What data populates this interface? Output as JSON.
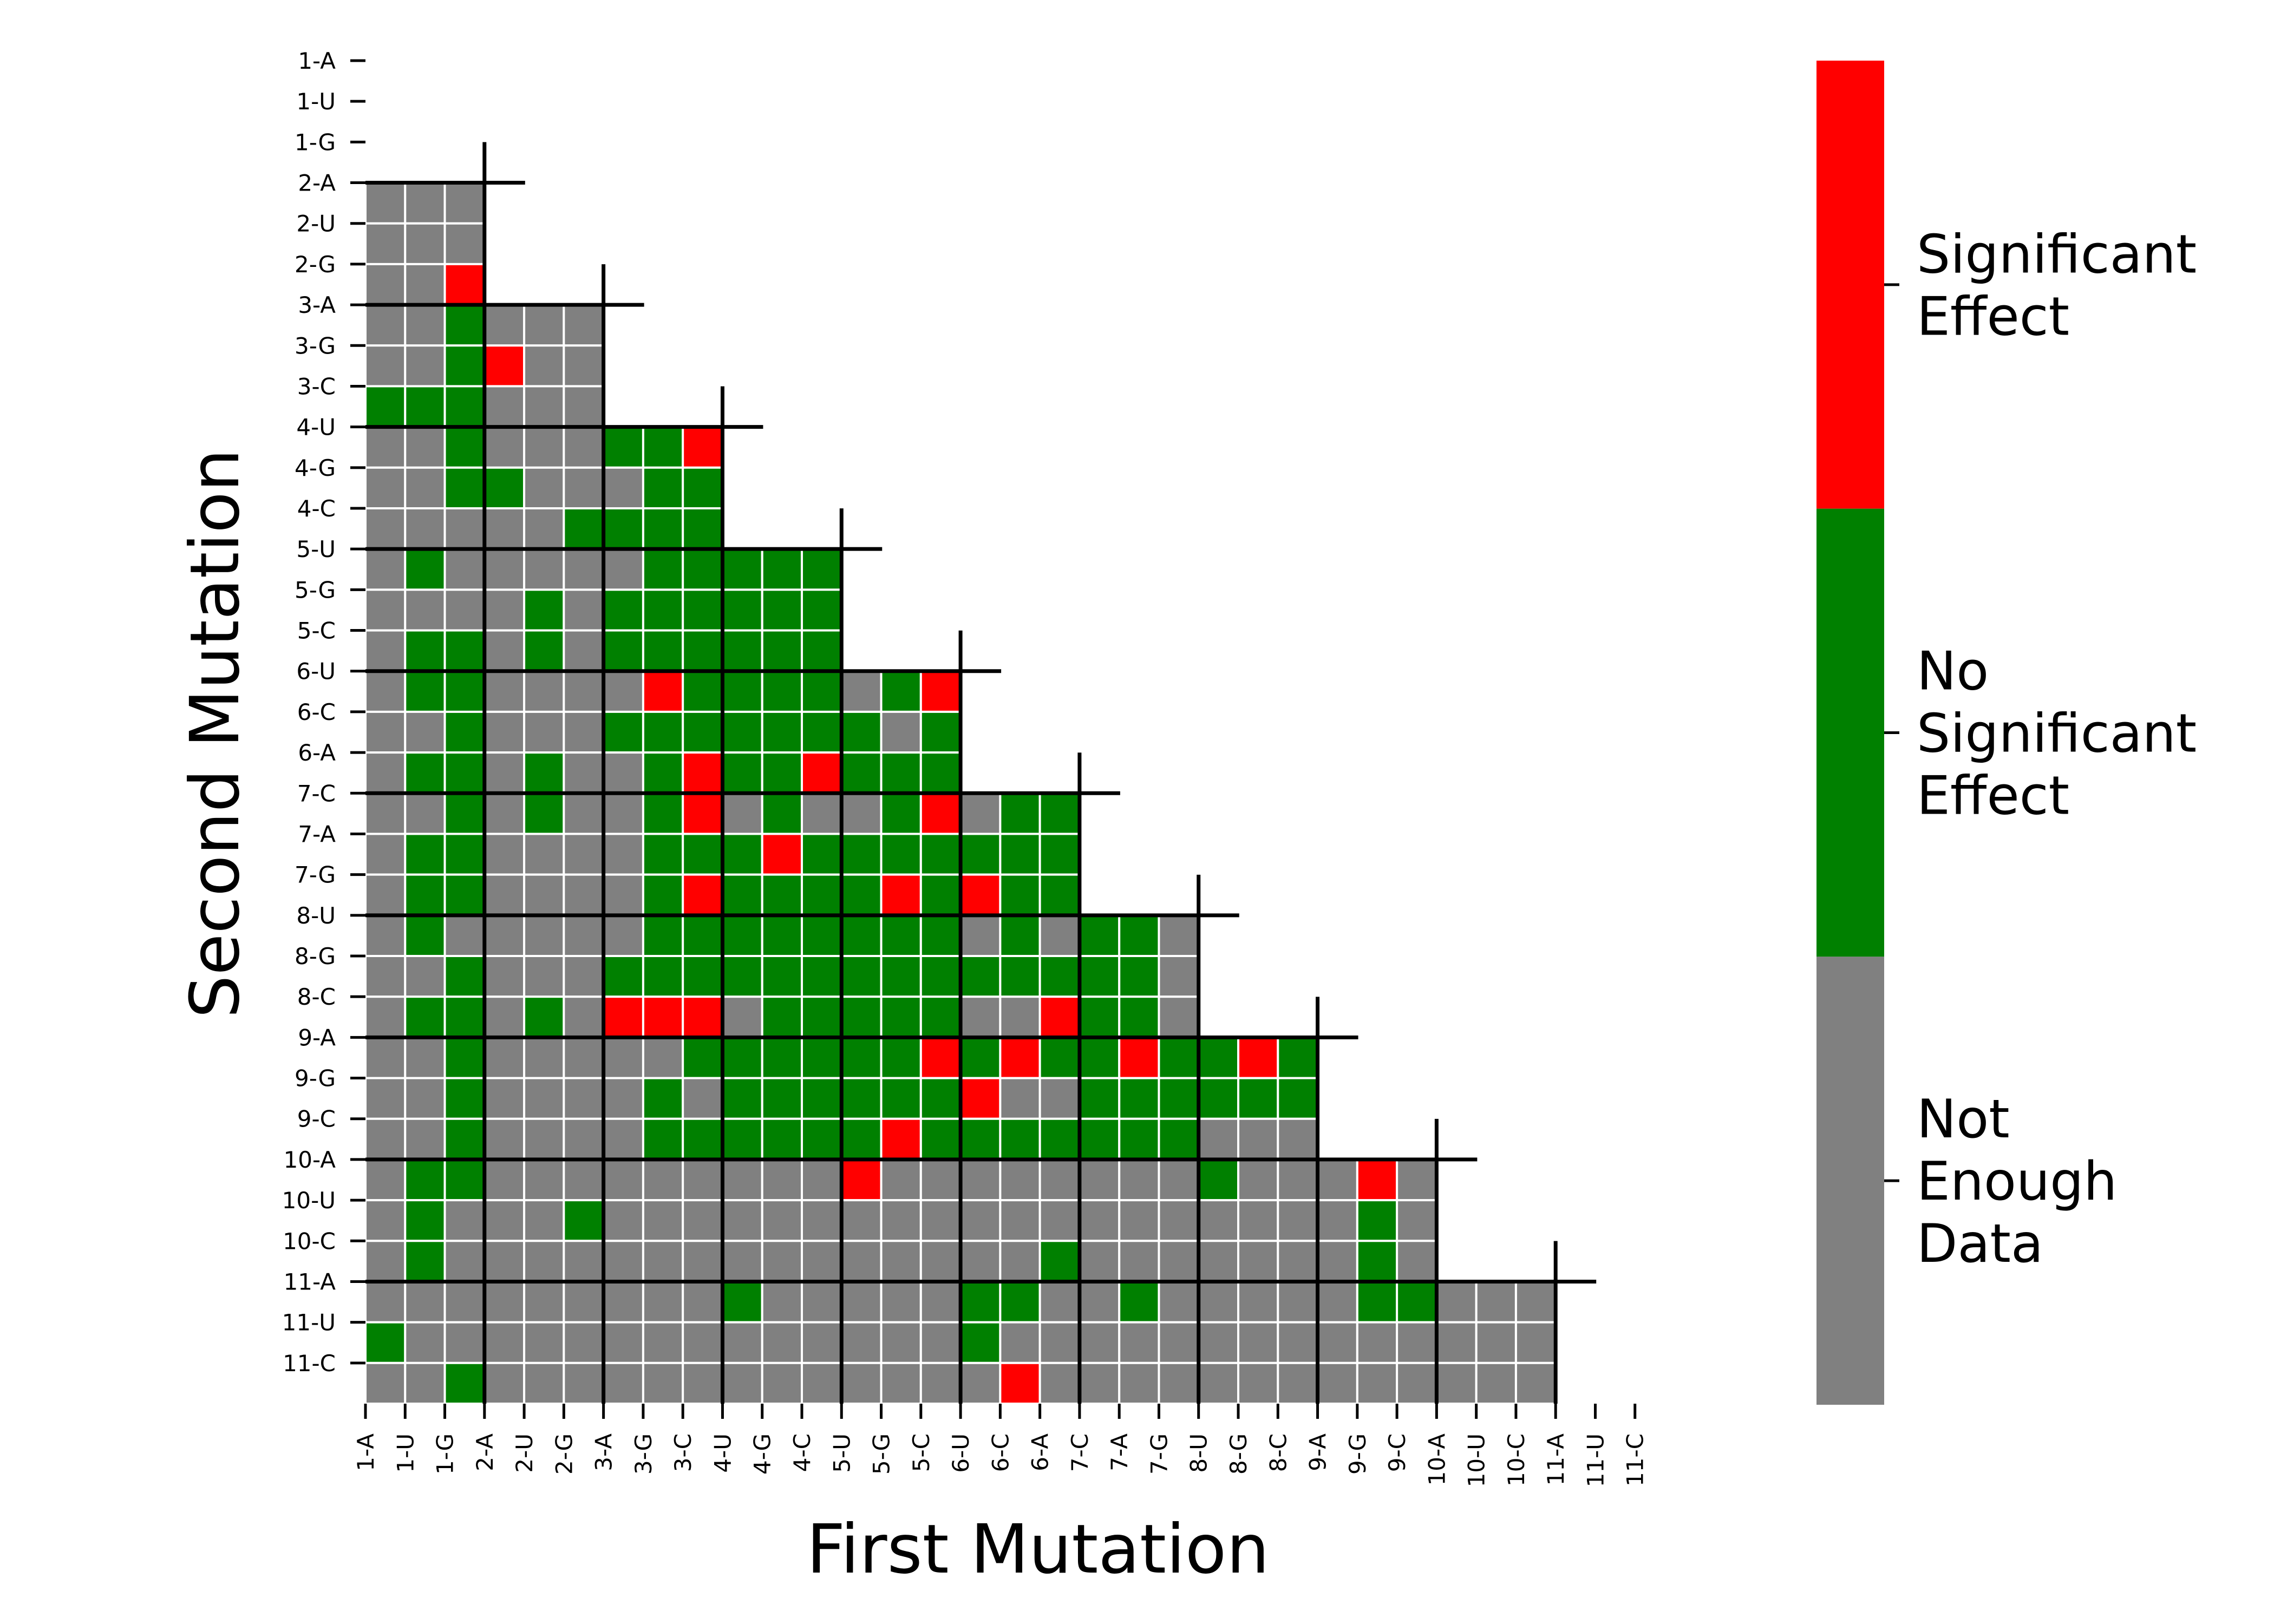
{
  "chart_data": {
    "type": "heatmap",
    "xlabel": "First Mutation",
    "ylabel": "Second Mutation",
    "x_tick_labels": [
      "1-A",
      "1-U",
      "1-G",
      "2-A",
      "2-U",
      "2-G",
      "3-A",
      "3-G",
      "3-C",
      "4-U",
      "4-G",
      "4-C",
      "5-U",
      "5-G",
      "5-C",
      "6-U",
      "6-C",
      "6-A",
      "7-C",
      "7-A",
      "7-G",
      "8-U",
      "8-G",
      "8-C",
      "9-A",
      "9-G",
      "9-C",
      "10-A",
      "10-U",
      "10-C",
      "11-A",
      "11-U",
      "11-C"
    ],
    "y_tick_labels": [
      "1-A",
      "1-U",
      "1-G",
      "2-A",
      "2-U",
      "2-G",
      "3-A",
      "3-G",
      "3-C",
      "4-U",
      "4-G",
      "4-C",
      "5-U",
      "5-G",
      "5-C",
      "6-U",
      "6-C",
      "6-A",
      "7-C",
      "7-A",
      "7-G",
      "8-U",
      "8-G",
      "8-C",
      "9-A",
      "9-G",
      "9-C",
      "10-A",
      "10-U",
      "10-C",
      "11-A",
      "11-U",
      "11-C"
    ],
    "category_codes": {
      "N": "Not Enough Data",
      "G": "No Significant Effect",
      "R": "Significant Effect"
    },
    "legend": [
      {
        "label_lines": [
          "Significant",
          "Effect"
        ],
        "color": "#ff0000"
      },
      {
        "label_lines": [
          "No",
          "Significant",
          "Effect"
        ],
        "color": "#008000"
      },
      {
        "label_lines": [
          "Not",
          "Enough",
          "Data"
        ],
        "color": "#808080"
      }
    ],
    "colors": {
      "N": "#808080",
      "G": "#008000",
      "R": "#ff0000",
      "grid": "#ffffff",
      "separator": "#000000"
    },
    "group_sizes": [
      3,
      3,
      3,
      3,
      3,
      3,
      3,
      3,
      3,
      3,
      3
    ],
    "rows": [
      "NNN",
      "NNN",
      "NNR",
      "NNGNNN",
      "NNGRNN",
      "GGGNNN",
      "NNGNNNGGR",
      "NNGGNNNGG",
      "NNNNNGGGG",
      "NGNNNNNGGGGG",
      "NNNNGNGGGGGG",
      "NGGNGNGGGGGG",
      "NGGNNNNRGGGGNGR",
      "NNGNNNGGGGGGGNG",
      "NGGNGNNGRGGRGGG",
      "NNGNGNNGRNGNNGRNGG",
      "NGGNNNNGGGRGGGGGGG",
      "NGGNNNNGRGGGGRGRGG",
      "NGNNNNNGGGGGGGGNGNGGN",
      "NNGNNNGGGGGGGGGGGGGGN",
      "NGGNGNRRRNGGGGGNNRGGN",
      "NNGNNNNNGGGGGGRGRGGRGGRG",
      "NNGNNNNGNGGGGGGRNNGGGGGG",
      "NNGNNNNGGGGGGRGGGGGGGNNN",
      "NGGNNNNNNNNNRNNNNNNNNGNNNRN",
      "NGNNNGNNNNNNNNNNNNNNNNNNNGN",
      "NGNNNNNNNNNNNNNNNGNNNNNNNGN",
      "NNNNNNNNNGNNNNNGGNNGNNNNNGGNNN",
      "GNNNNNNNNNNNNNNGNNNNNNNNNNNNNN",
      "NNGNNNNNNNNNNNNNRNNNNNNNNNNNNN"
    ]
  }
}
